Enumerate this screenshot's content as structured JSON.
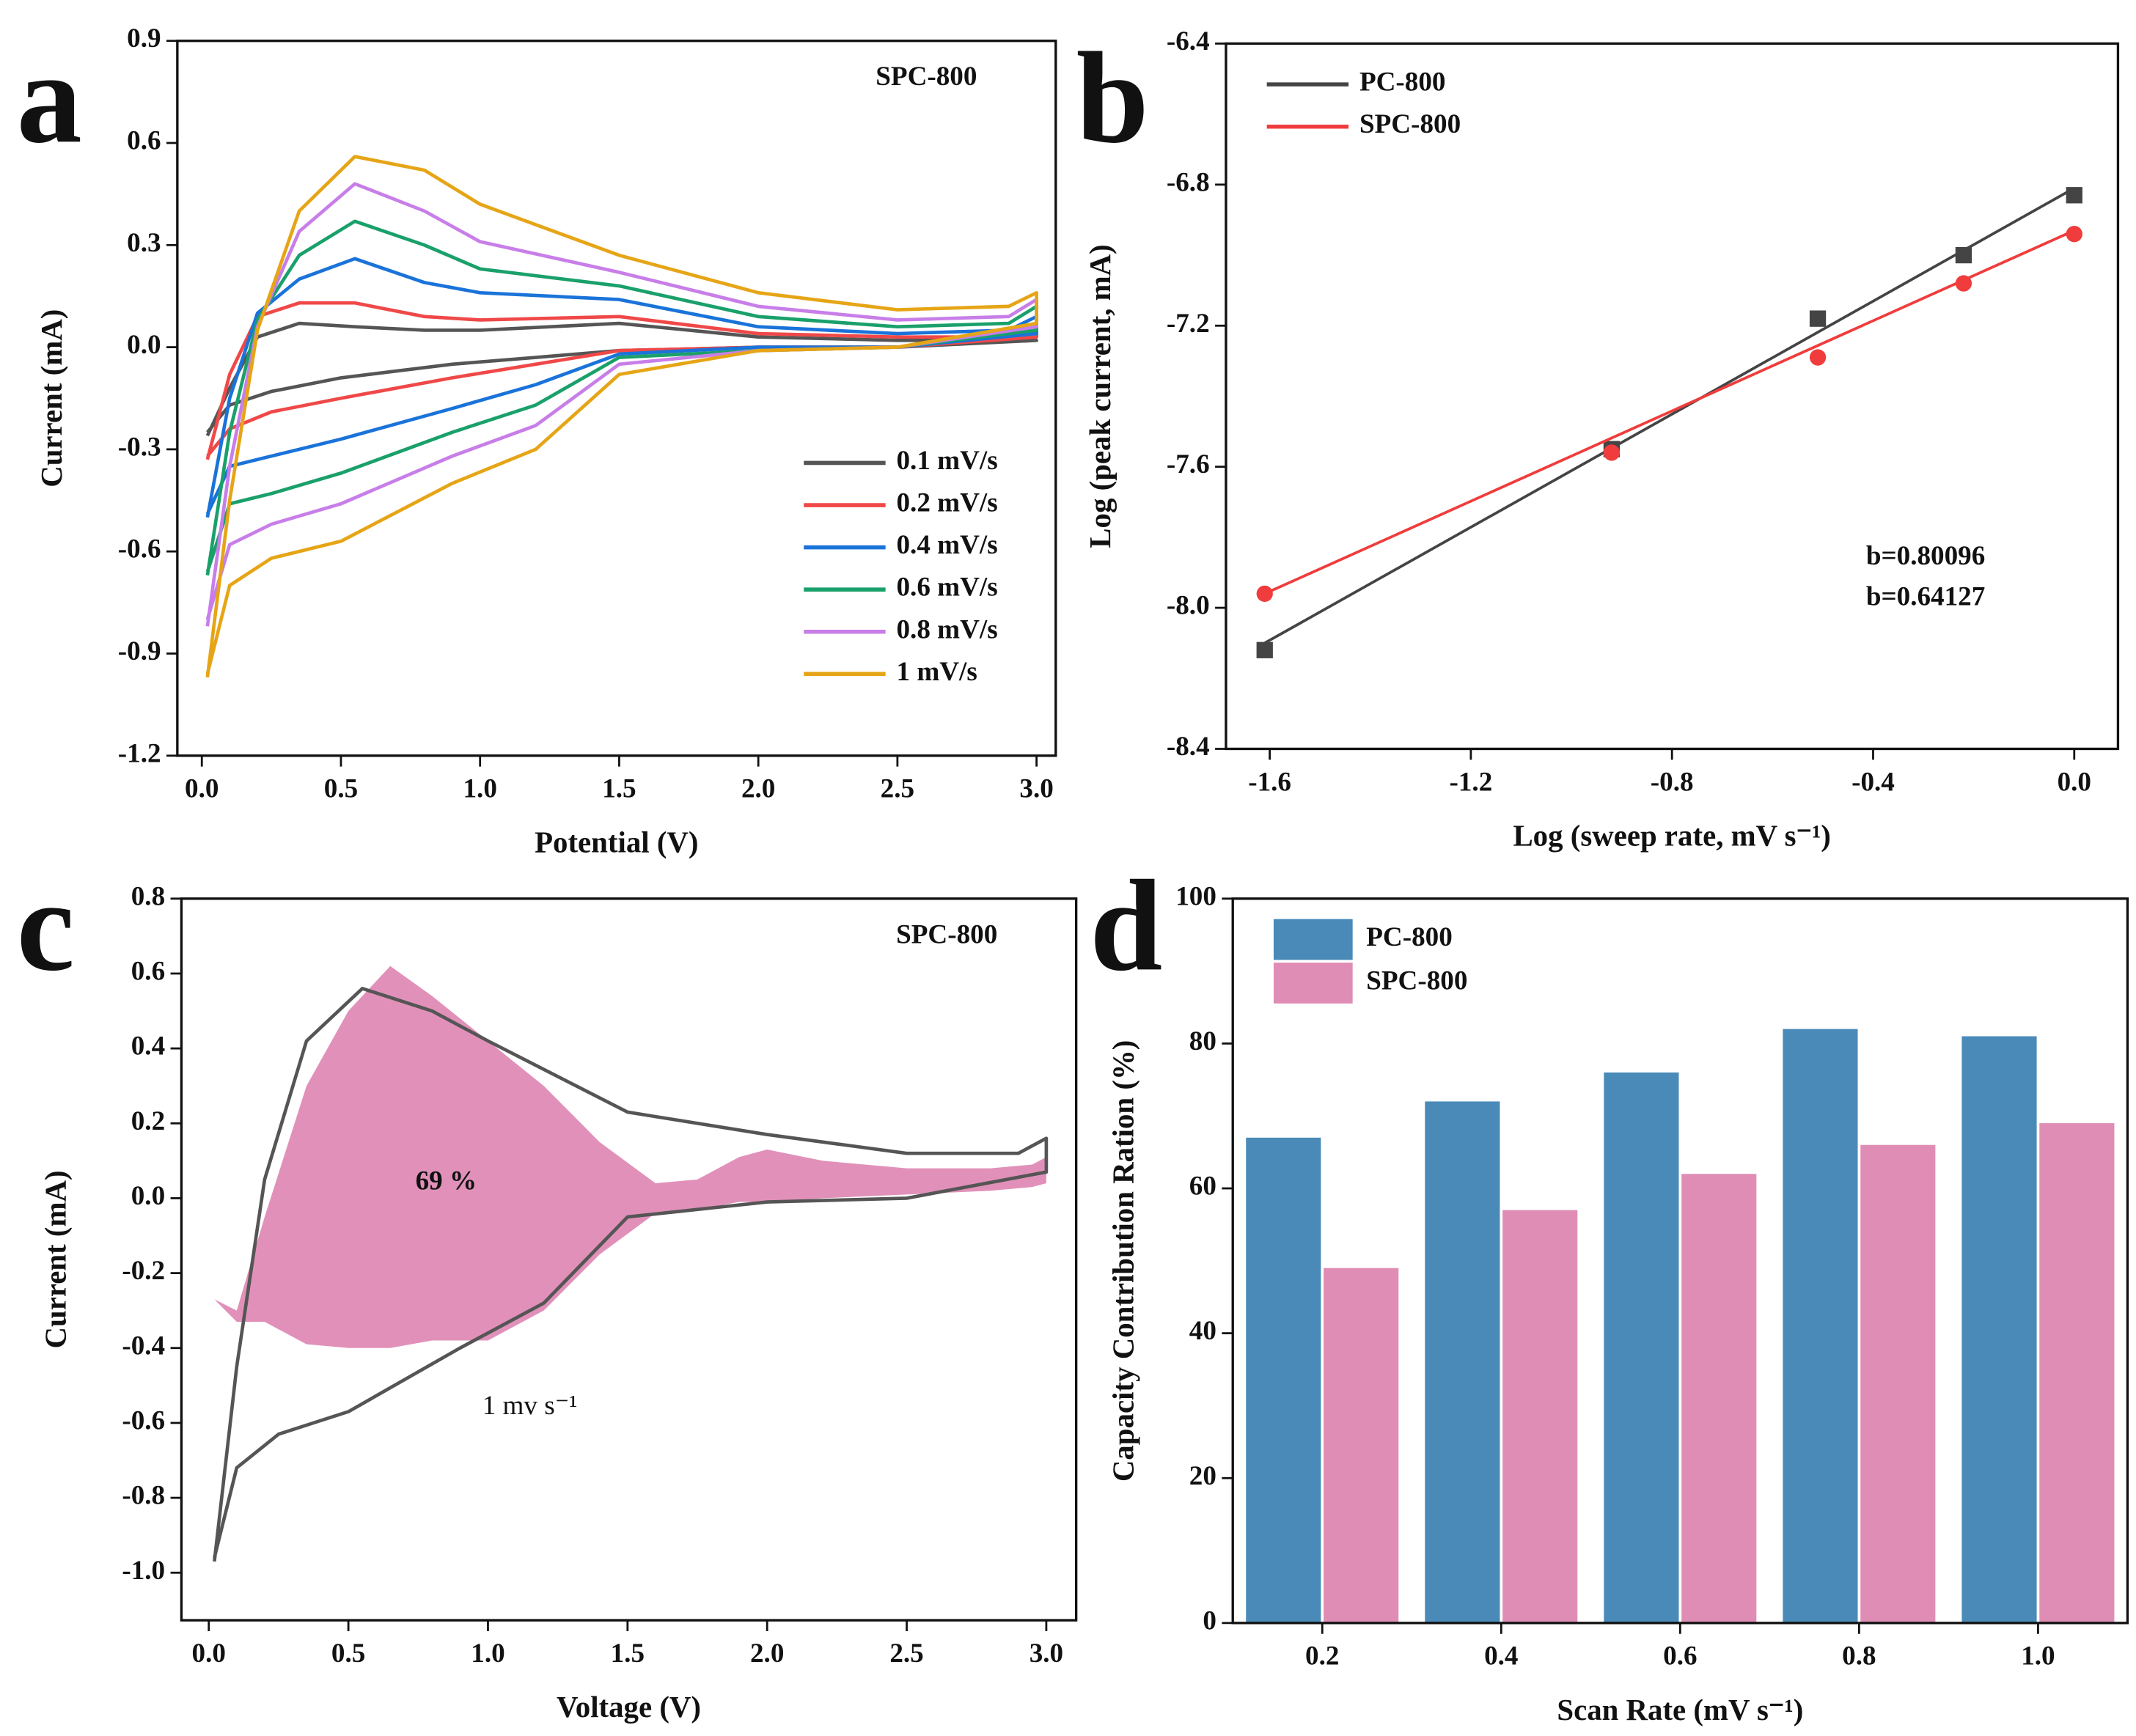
{
  "chart_data": [
    {
      "type": "line",
      "panel_label": "a",
      "title": "SPC-800",
      "x_label": "Potential (V)",
      "y_label": "Current (mA)",
      "xlim": [
        -0.088,
        3.069
      ],
      "ylim": [
        -1.2,
        0.9
      ],
      "xticks": [
        {
          "value": 0,
          "label": "0.0"
        },
        0.5,
        {
          "value": 1,
          "label": "1.0"
        },
        1.5,
        {
          "value": 2,
          "label": "2.0"
        },
        2.5,
        {
          "value": 3,
          "label": "3.0"
        }
      ],
      "yticks": [
        -1.2,
        -0.9,
        -0.6,
        -0.3,
        {
          "value": 0,
          "label": "0.0"
        },
        0.3,
        0.6,
        0.9
      ],
      "legend": "lower right",
      "x": [
        0.02,
        0.1,
        0.2,
        0.35,
        0.55,
        0.8,
        1.0,
        1.5,
        2.0,
        2.5,
        2.9,
        3.0,
        3.0,
        2.5,
        2.0,
        1.5,
        1.2,
        0.9,
        0.5,
        0.25,
        0.1,
        0.02
      ],
      "series": [
        {
          "name": "0.1 mV/s",
          "color": "#555555",
          "values": [
            -0.26,
            -0.12,
            0.03,
            0.07,
            0.06,
            0.05,
            0.05,
            0.07,
            0.03,
            0.02,
            0.02,
            0.02,
            0.02,
            0.0,
            0.0,
            -0.01,
            -0.03,
            -0.05,
            -0.09,
            -0.13,
            -0.17,
            -0.25
          ]
        },
        {
          "name": "0.2 mV/s",
          "color": "#f04848",
          "values": [
            -0.33,
            -0.08,
            0.09,
            0.13,
            0.13,
            0.09,
            0.08,
            0.09,
            0.04,
            0.03,
            0.03,
            0.05,
            0.03,
            0.0,
            0.0,
            -0.01,
            -0.05,
            -0.09,
            -0.15,
            -0.19,
            -0.24,
            -0.32
          ]
        },
        {
          "name": "0.4 mV/s",
          "color": "#1a73d9",
          "values": [
            -0.5,
            -0.15,
            0.1,
            0.2,
            0.26,
            0.19,
            0.16,
            0.14,
            0.06,
            0.04,
            0.05,
            0.09,
            0.04,
            0.0,
            0.0,
            -0.02,
            -0.11,
            -0.18,
            -0.27,
            -0.32,
            -0.35,
            -0.49
          ]
        },
        {
          "name": "0.6 mV/s",
          "color": "#1aa06a",
          "values": [
            -0.67,
            -0.25,
            0.08,
            0.27,
            0.37,
            0.3,
            0.23,
            0.18,
            0.09,
            0.06,
            0.07,
            0.12,
            0.05,
            0.0,
            -0.01,
            -0.03,
            -0.17,
            -0.25,
            -0.37,
            -0.43,
            -0.46,
            -0.66
          ]
        },
        {
          "name": "0.8 mV/s",
          "color": "#c87ee8",
          "values": [
            -0.82,
            -0.35,
            0.06,
            0.34,
            0.48,
            0.4,
            0.31,
            0.22,
            0.12,
            0.08,
            0.09,
            0.14,
            0.06,
            0.0,
            -0.01,
            -0.05,
            -0.23,
            -0.32,
            -0.46,
            -0.52,
            -0.58,
            -0.8
          ]
        },
        {
          "name": "1 mV/s",
          "color": "#e6a516",
          "values": [
            -0.97,
            -0.45,
            0.05,
            0.4,
            0.56,
            0.52,
            0.42,
            0.27,
            0.16,
            0.11,
            0.12,
            0.16,
            0.07,
            0.0,
            -0.01,
            -0.08,
            -0.3,
            -0.4,
            -0.57,
            -0.62,
            -0.7,
            -0.96
          ]
        }
      ]
    },
    {
      "type": "scatter",
      "panel_label": "b",
      "x_label": "Log (sweep rate, mV s⁻¹)",
      "y_label": "Log (peak current, mA)",
      "xlim": [
        -1.687,
        0.087
      ],
      "ylim": [
        -8.4,
        -6.4
      ],
      "xticks": [
        -1.6,
        -1.2,
        -0.8,
        -0.4,
        {
          "value": 0,
          "label": "0.0"
        }
      ],
      "yticks": [
        -8.4,
        {
          "value": -8,
          "label": "-8.0"
        },
        -7.6,
        -7.2,
        -6.8,
        -6.4
      ],
      "legend": "upper left",
      "series": [
        {
          "name": "PC-800",
          "color": "#444444",
          "marker": "square",
          "x": [
            -1.61,
            -0.92,
            -0.51,
            -0.22,
            0
          ],
          "values": [
            -8.12,
            -7.55,
            -7.18,
            -7.0,
            -6.83
          ],
          "fit": {
            "x": [
              -1.61,
              0
            ],
            "values": [
              -8.1,
              -6.81
            ]
          },
          "label": "b=0.80096"
        },
        {
          "name": "SPC-800",
          "color": "#f03c3c",
          "marker": "circle",
          "x": [
            -1.61,
            -0.92,
            -0.51,
            -0.22,
            0
          ],
          "values": [
            -7.96,
            -7.56,
            -7.29,
            -7.08,
            -6.94
          ],
          "fit": {
            "x": [
              -1.61,
              0
            ],
            "values": [
              -7.96,
              -6.93
            ]
          },
          "label": "b=0.64127"
        }
      ]
    },
    {
      "type": "area",
      "panel_label": "c",
      "title": "SPC-800",
      "x_label": "Voltage (V)",
      "y_label": "Current (mA)",
      "xlim": [
        -0.098,
        3.107
      ],
      "ylim": [
        -1.127,
        0.8
      ],
      "xticks": [
        {
          "value": 0,
          "label": "0.0"
        },
        0.5,
        {
          "value": 1,
          "label": "1.0"
        },
        1.5,
        {
          "value": 2,
          "label": "2.0"
        },
        2.5,
        {
          "value": 3,
          "label": "3.0"
        }
      ],
      "yticks": [
        {
          "value": -1,
          "label": "-1.0"
        },
        -0.8,
        -0.6,
        -0.4,
        -0.2,
        {
          "value": 0,
          "label": "0.0"
        },
        0.2,
        0.4,
        0.6,
        0.8
      ],
      "annotations": [
        "69 %",
        "1 mv s⁻¹"
      ],
      "series": [
        {
          "color": "#e191b9",
          "x": [
            0.02,
            0.1,
            0.2,
            0.35,
            0.5,
            0.65,
            0.8,
            1.0,
            1.2,
            1.4,
            1.6,
            1.75,
            1.9,
            2.0,
            2.2,
            2.5,
            2.8,
            2.95,
            3.0
          ],
          "values": [
            -0.27,
            -0.3,
            -0.05,
            0.3,
            0.5,
            0.62,
            0.54,
            0.42,
            0.3,
            0.15,
            0.04,
            0.05,
            0.11,
            0.13,
            0.1,
            0.08,
            0.08,
            0.09,
            0.11
          ],
          "lower": [
            -0.27,
            -0.33,
            -0.33,
            -0.39,
            -0.4,
            -0.4,
            -0.38,
            -0.38,
            -0.3,
            -0.15,
            -0.04,
            -0.03,
            -0.01,
            -0.01,
            0.0,
            0.01,
            0.02,
            0.03,
            0.04
          ]
        },
        {
          "color": "#555555",
          "x": [
            0.02,
            0.1,
            0.2,
            0.35,
            0.55,
            0.8,
            1.0,
            1.5,
            2.0,
            2.5,
            2.9,
            3.0,
            3.0,
            2.5,
            2.0,
            1.5,
            1.2,
            0.9,
            0.5,
            0.25,
            0.1,
            0.02
          ],
          "values": [
            -0.97,
            -0.45,
            0.05,
            0.42,
            0.56,
            0.5,
            0.42,
            0.23,
            0.17,
            0.12,
            0.12,
            0.16,
            0.07,
            0.0,
            -0.01,
            -0.05,
            -0.28,
            -0.4,
            -0.57,
            -0.63,
            -0.72,
            -0.96
          ]
        }
      ]
    },
    {
      "type": "bar",
      "panel_label": "d",
      "x_label": "Scan Rate (mV s⁻¹)",
      "y_label": "Capacity Contribution Ration (%)",
      "ylim": [
        0,
        100
      ],
      "yticks": [
        0,
        20,
        40,
        60,
        80,
        100
      ],
      "legend": "upper left",
      "categories": [
        "0.2",
        "0.4",
        "0.6",
        "0.8",
        "1.0"
      ],
      "series": [
        {
          "name": "PC-800",
          "color": "#4a8ab8",
          "values": [
            67,
            72,
            76,
            82,
            81
          ]
        },
        {
          "name": "SPC-800",
          "color": "#e08db5",
          "values": [
            49,
            57,
            62,
            66,
            69
          ]
        }
      ]
    }
  ]
}
